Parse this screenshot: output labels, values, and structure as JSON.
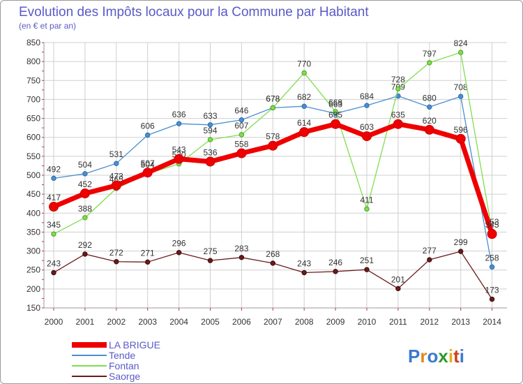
{
  "colors": {
    "title": "#5a5ac8",
    "grid": "#cfcfcf",
    "axis_text": "#333333",
    "legend_text": "#5a5ac8"
  },
  "chart_data": {
    "type": "line",
    "title": "Evolution des Impôts locaux pour la Commune par Habitant",
    "subtitle": "(en € et par an)",
    "xlabel": "",
    "ylabel": "",
    "ylim": [
      150,
      850
    ],
    "yticks": [
      150,
      200,
      250,
      300,
      350,
      400,
      450,
      500,
      550,
      600,
      650,
      700,
      750,
      800,
      850
    ],
    "categories": [
      "2000",
      "2001",
      "2002",
      "2003",
      "2004",
      "2005",
      "2006",
      "2007",
      "2008",
      "2009",
      "2010",
      "2011",
      "2012",
      "2013",
      "2014"
    ],
    "grid": true,
    "legend_position": "bottom-left",
    "series": [
      {
        "name": "Saorge",
        "color": "#6b1a1a",
        "values": [
          243,
          292,
          272,
          271,
          296,
          275,
          283,
          268,
          243,
          246,
          251,
          201,
          277,
          299,
          173
        ],
        "labels": [
          "243",
          "292",
          "272",
          "271",
          "296",
          "275",
          "283",
          "268",
          "243",
          "246",
          "251",
          "201",
          "277",
          "299",
          "173"
        ]
      },
      {
        "name": "Tende",
        "color": "#4a8fd0",
        "values": [
          492,
          504,
          531,
          606,
          636,
          633,
          646,
          678,
          682,
          663,
          684,
          709,
          680,
          708,
          258
        ],
        "labels": [
          "492",
          "504",
          "531",
          "606",
          "636",
          "633",
          "646",
          "678",
          "682",
          "663",
          "684",
          "709",
          "680",
          "708",
          "258"
        ]
      },
      {
        "name": "Fontan",
        "color": "#80dd50",
        "values": [
          345,
          388,
          465,
          504,
          530,
          594,
          607,
          678,
          770,
          668,
          411,
          728,
          797,
          824,
          353
        ],
        "labels": [
          "345",
          "388",
          "465",
          "504",
          "530",
          "594",
          "607",
          "678",
          "770",
          "668",
          "411",
          "728",
          "797",
          "824",
          "353"
        ]
      },
      {
        "name": "LA BRIGUE",
        "color": "#ee0000",
        "values": [
          417,
          452,
          473,
          507,
          543,
          536,
          558,
          578,
          614,
          635,
          603,
          635,
          620,
          596,
          345
        ],
        "labels": [
          "417",
          "452",
          "473",
          "507",
          "543",
          "536",
          "558",
          "578",
          "614",
          "635",
          "603",
          "635",
          "620",
          "596",
          "345"
        ]
      }
    ],
    "legend_order": [
      "LA BRIGUE",
      "Tende",
      "Fontan",
      "Saorge"
    ]
  },
  "logo": {
    "letters": [
      "P",
      "r",
      "o",
      "x",
      "i",
      "t",
      "i"
    ],
    "colors": [
      "#3a7ad0",
      "#e08a20",
      "#3a7ad0",
      "#2c9a2c",
      "#e0b020",
      "#d04020",
      "#3a7ad0"
    ]
  }
}
